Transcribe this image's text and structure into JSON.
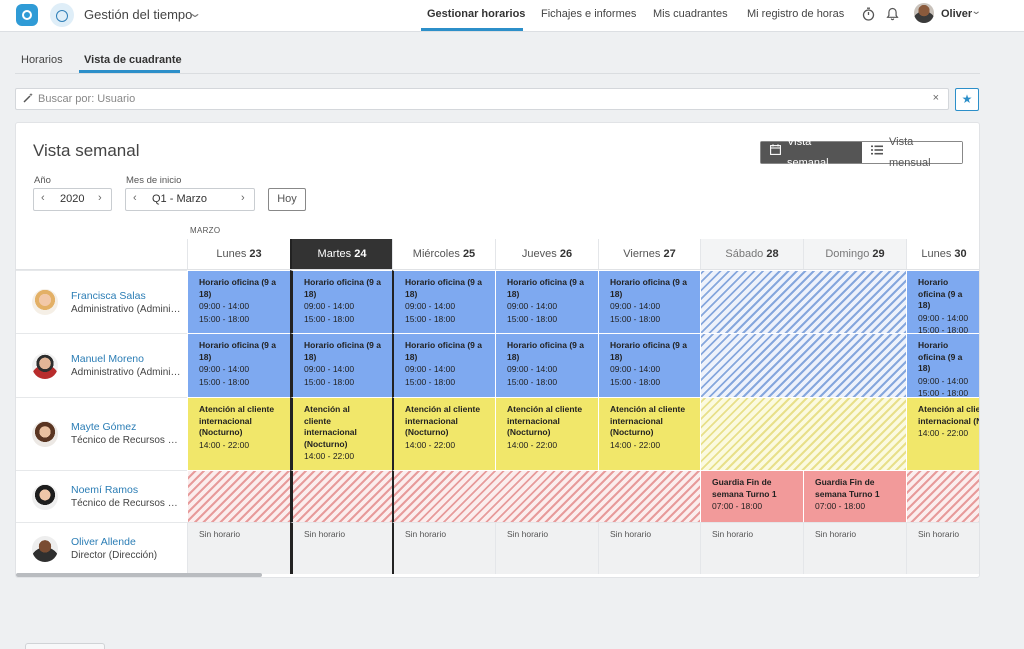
{
  "topbar": {
    "app_title": "Gestión del tiempo",
    "nav": [
      "Gestionar horarios",
      "Fichajes e informes",
      "Mis cuadrantes",
      "Mi registro de horas"
    ],
    "user_name": "Oliver"
  },
  "subtabs": [
    "Horarios",
    "Vista de cuadrante"
  ],
  "search": {
    "placeholder": "Buscar por: Usuario",
    "clear": "×"
  },
  "card": {
    "title": "Vista semanal",
    "toggle": {
      "weekly": "Vista semanal",
      "monthly": "Vista mensual"
    },
    "year_label": "Año",
    "year_value": "2020",
    "month_label": "Mes de inicio",
    "month_value": "Q1 - Marzo",
    "today_button": "Hoy",
    "month_header": "MARZO"
  },
  "days": [
    {
      "name": "Lunes",
      "num": "23"
    },
    {
      "name": "Martes",
      "num": "24"
    },
    {
      "name": "Miércoles",
      "num": "25"
    },
    {
      "name": "Jueves",
      "num": "26"
    },
    {
      "name": "Viernes",
      "num": "27"
    },
    {
      "name": "Sábado",
      "num": "28"
    },
    {
      "name": "Domingo",
      "num": "29"
    },
    {
      "name": "Lunes",
      "num": "30"
    }
  ],
  "people": [
    {
      "name": "Francisca Salas",
      "role": "Administrativo (Administración)"
    },
    {
      "name": "Manuel Moreno",
      "role": "Administrativo (Administración)"
    },
    {
      "name": "Mayte Gómez",
      "role": "Técnico de Recursos Humanos"
    },
    {
      "name": "Noemí Ramos",
      "role": "Técnico de Recursos Humanos"
    },
    {
      "name": "Oliver Allende",
      "role": "Director (Dirección)"
    }
  ],
  "shifts": {
    "office_name": "Horario oficina (9 a 18)",
    "office_t1": "09:00 - 14:00",
    "office_t2": "15:00 - 18:00",
    "night_name": "Atención al cliente internacional (Nocturno)",
    "night_t1": "14:00 - 22:00",
    "guard_name": "Guardia Fin de semana Turno 1",
    "guard_t1": "07:00 - 18:00",
    "none": "Sin horario"
  },
  "colors": {
    "accent": "#2c8fc9",
    "office": "#7ea9f0",
    "night": "#f1e76a",
    "guard": "#f29a9a"
  }
}
